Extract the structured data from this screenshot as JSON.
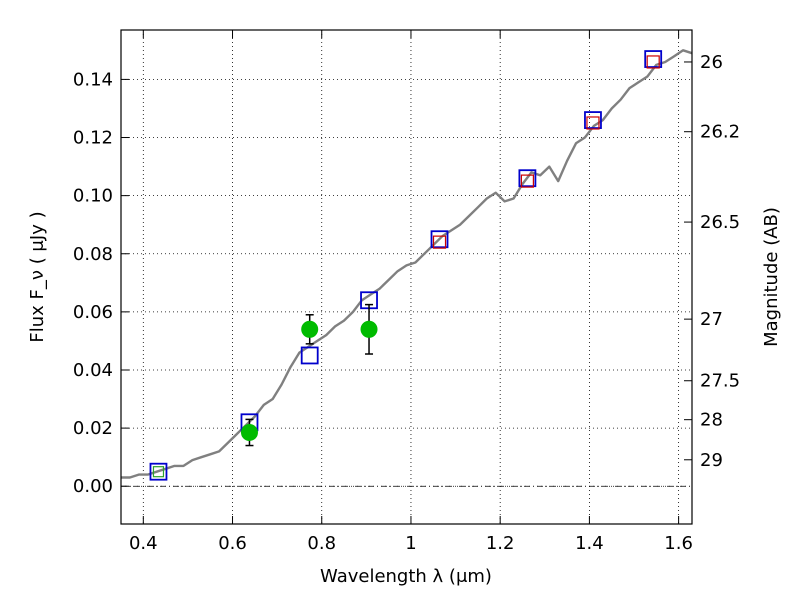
{
  "chart_data": {
    "type": "scatter",
    "xlabel": "Wavelength  λ (μm)",
    "ylabel": "Flux  F_ν  ( μJy )",
    "ylabel_right": "Magnitude (AB)",
    "xlim": [
      0.35,
      1.63
    ],
    "ylim": [
      -0.013,
      0.157
    ],
    "grid": true,
    "x_ticks": [
      0.4,
      0.6,
      0.8,
      1.0,
      1.2,
      1.4,
      1.6
    ],
    "x_tick_labels": [
      "0.4",
      "0.6",
      "0.8",
      "1",
      "1.2",
      "1.4",
      "1.6"
    ],
    "y_ticks": [
      0.0,
      0.02,
      0.04,
      0.06,
      0.08,
      0.1,
      0.12,
      0.14
    ],
    "y_tick_labels": [
      "0.00",
      "0.02",
      "0.04",
      "0.06",
      "0.08",
      "0.10",
      "0.12",
      "0.14"
    ],
    "right_ticks": [
      {
        "flux": 0.146,
        "label": "26"
      },
      {
        "flux": 0.122,
        "label": "26.2"
      },
      {
        "flux": 0.0909,
        "label": "26.5"
      },
      {
        "flux": 0.0575,
        "label": "27"
      },
      {
        "flux": 0.0363,
        "label": "27.5"
      },
      {
        "flux": 0.0229,
        "label": "28"
      },
      {
        "flux": 0.0091,
        "label": "29"
      }
    ],
    "series": [
      {
        "style": "gray-line",
        "color": "#808080",
        "x": [
          0.35,
          0.37,
          0.39,
          0.41,
          0.43,
          0.45,
          0.47,
          0.49,
          0.51,
          0.53,
          0.55,
          0.57,
          0.59,
          0.61,
          0.63,
          0.65,
          0.67,
          0.69,
          0.71,
          0.73,
          0.75,
          0.77,
          0.79,
          0.81,
          0.83,
          0.85,
          0.87,
          0.89,
          0.91,
          0.93,
          0.95,
          0.97,
          0.99,
          1.01,
          1.03,
          1.05,
          1.07,
          1.09,
          1.11,
          1.13,
          1.15,
          1.17,
          1.19,
          1.21,
          1.23,
          1.25,
          1.27,
          1.29,
          1.31,
          1.33,
          1.35,
          1.37,
          1.39,
          1.41,
          1.43,
          1.45,
          1.47,
          1.49,
          1.51,
          1.53,
          1.55,
          1.57,
          1.59,
          1.61,
          1.63
        ],
        "y": [
          0.003,
          0.003,
          0.004,
          0.004,
          0.005,
          0.006,
          0.007,
          0.007,
          0.009,
          0.01,
          0.011,
          0.012,
          0.015,
          0.018,
          0.021,
          0.024,
          0.028,
          0.03,
          0.035,
          0.041,
          0.046,
          0.048,
          0.05,
          0.052,
          0.055,
          0.057,
          0.06,
          0.064,
          0.066,
          0.068,
          0.071,
          0.074,
          0.076,
          0.077,
          0.08,
          0.083,
          0.086,
          0.088,
          0.09,
          0.093,
          0.096,
          0.099,
          0.101,
          0.098,
          0.099,
          0.104,
          0.108,
          0.107,
          0.11,
          0.105,
          0.112,
          0.118,
          0.12,
          0.124,
          0.126,
          0.13,
          0.133,
          0.137,
          0.139,
          0.141,
          0.145,
          0.146,
          0.148,
          0.15,
          0.149
        ]
      },
      {
        "style": "blue-open-square",
        "color": "#0000cc",
        "x": [
          0.434,
          0.638,
          0.773,
          0.906,
          1.064,
          1.261,
          1.408,
          1.543
        ],
        "y": [
          0.005,
          0.022,
          0.045,
          0.064,
          0.085,
          0.106,
          0.126,
          0.147
        ]
      },
      {
        "style": "red-open-square",
        "color": "#cc0000",
        "x": [
          1.064,
          1.261,
          1.408,
          1.543
        ],
        "y": [
          0.084,
          0.105,
          0.125,
          0.146
        ]
      },
      {
        "style": "green-marker",
        "color": "#2ca02c",
        "x": [
          0.434
        ],
        "y": [
          0.005
        ]
      },
      {
        "style": "green-filled-circle",
        "color": "#00bb00",
        "x": [
          0.638,
          0.773,
          0.906
        ],
        "y": [
          0.0185,
          0.054,
          0.054
        ],
        "yerr": [
          0.0045,
          0.005,
          0.0085
        ]
      }
    ]
  }
}
